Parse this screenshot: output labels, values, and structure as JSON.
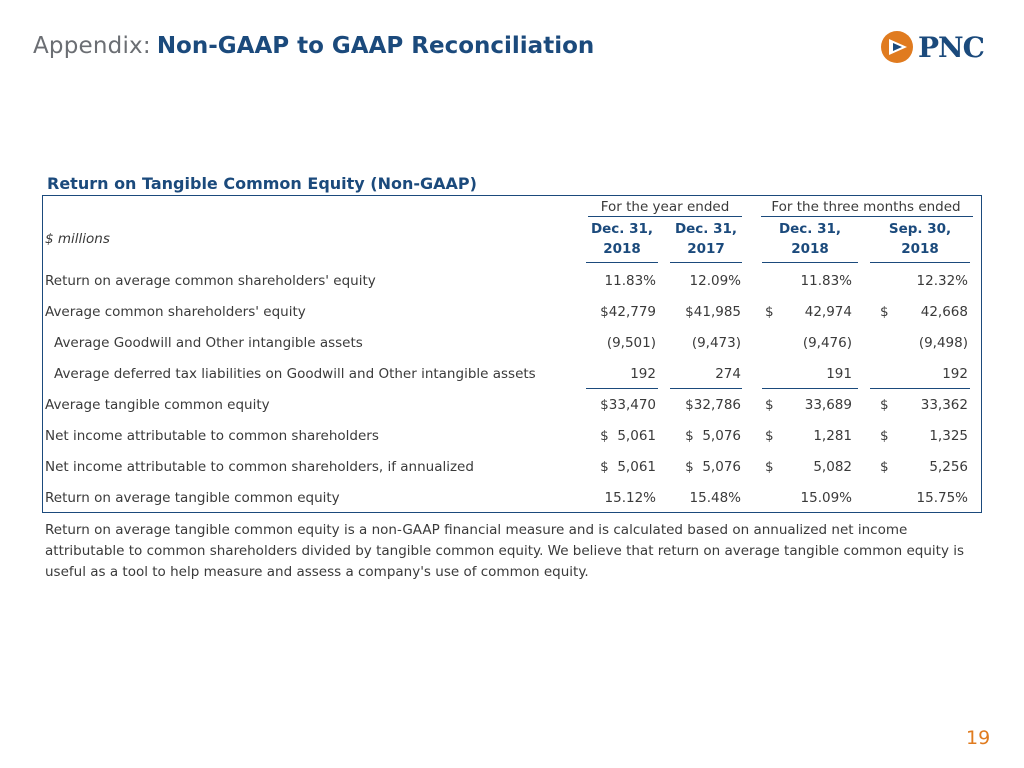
{
  "header": {
    "prefix": "Appendix:",
    "title": "Non-GAAP to GAAP Reconciliation",
    "logo_text": "PNC",
    "logo_icon": "pnc-triangle-logo-icon"
  },
  "section_title": "Return on Tangible Common Equity (Non-GAAP)",
  "table": {
    "units": "$ millions",
    "groups": [
      "For the year ended",
      "For the three months ended"
    ],
    "columns": [
      {
        "line1": "Dec. 31,",
        "line2": "2018"
      },
      {
        "line1": "Dec. 31,",
        "line2": "2017"
      },
      {
        "line1": "Dec. 31,",
        "line2": "2018"
      },
      {
        "line1": "Sep. 30,",
        "line2": "2018"
      }
    ],
    "rows": [
      {
        "label": "Return on average common shareholders' equity",
        "indent": false,
        "cells": [
          {
            "c": "",
            "v": "11.83%"
          },
          {
            "c": "",
            "v": "12.09%"
          },
          {
            "c": "",
            "v": "11.83%"
          },
          {
            "c": "",
            "v": "12.32%"
          }
        ]
      },
      {
        "label": "Average common shareholders' equity",
        "indent": false,
        "cells": [
          {
            "c": "",
            "v": "$42,779"
          },
          {
            "c": "",
            "v": "$41,985"
          },
          {
            "c": "$",
            "v": "42,974"
          },
          {
            "c": "$",
            "v": "42,668"
          }
        ]
      },
      {
        "label": "Average Goodwill and Other intangible assets",
        "indent": true,
        "cells": [
          {
            "c": "",
            "v": "(9,501)"
          },
          {
            "c": "",
            "v": "(9,473)"
          },
          {
            "c": "",
            "v": "(9,476)"
          },
          {
            "c": "",
            "v": "(9,498)"
          }
        ]
      },
      {
        "label": "Average deferred tax liabilities on Goodwill and Other intangible assets",
        "indent": true,
        "cells": [
          {
            "c": "",
            "v": "192"
          },
          {
            "c": "",
            "v": "274"
          },
          {
            "c": "",
            "v": "191"
          },
          {
            "c": "",
            "v": "192"
          }
        ]
      },
      {
        "label": "Average tangible common equity",
        "indent": false,
        "cells": [
          {
            "c": "",
            "v": "$33,470"
          },
          {
            "c": "",
            "v": "$32,786"
          },
          {
            "c": "$",
            "v": "33,689"
          },
          {
            "c": "$",
            "v": "33,362"
          }
        ]
      },
      {
        "label": "Net income attributable to common shareholders",
        "indent": false,
        "cells": [
          {
            "c": "",
            "v": "$  5,061"
          },
          {
            "c": "",
            "v": "$  5,076"
          },
          {
            "c": "$",
            "v": "1,281"
          },
          {
            "c": "$",
            "v": "1,325"
          }
        ]
      },
      {
        "label": "Net income attributable to common shareholders, if annualized",
        "indent": false,
        "cells": [
          {
            "c": "",
            "v": "$  5,061"
          },
          {
            "c": "",
            "v": "$  5,076"
          },
          {
            "c": "$",
            "v": "5,082"
          },
          {
            "c": "$",
            "v": "5,256"
          }
        ]
      },
      {
        "label": "Return on average tangible common equity",
        "indent": false,
        "cells": [
          {
            "c": "",
            "v": "15.12%"
          },
          {
            "c": "",
            "v": "15.48%"
          },
          {
            "c": "",
            "v": "15.09%"
          },
          {
            "c": "",
            "v": "15.75%"
          }
        ]
      }
    ]
  },
  "footnote": "Return on average tangible common equity is a non-GAAP financial measure and is calculated based on annualized net income attributable to common shareholders divided by tangible common equity.  We believe that return on average tangible common equity is useful as a tool to help measure and assess a company's use of common equity.",
  "page_number": "19",
  "colors": {
    "navy": "#1b4a7c",
    "orange": "#e07b1f",
    "text": "#3a3a3a",
    "gray": "#6b6e73"
  }
}
